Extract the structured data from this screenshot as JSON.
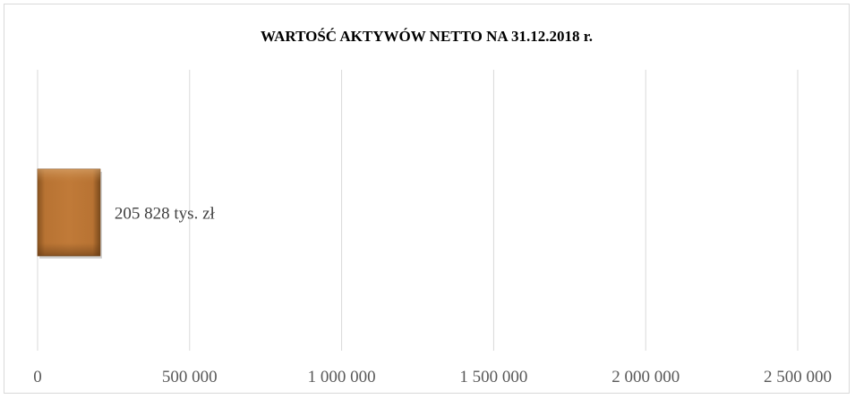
{
  "chart_data": {
    "type": "bar",
    "orientation": "horizontal",
    "title": "WARTOŚĆ AKTYWÓW NETTO NA 31.12.2018 r.",
    "xlabel": "",
    "ylabel": "",
    "categories": [
      ""
    ],
    "values": [
      205828
    ],
    "data_labels": [
      "205 828 tys. zł"
    ],
    "xlim": [
      0,
      2500000
    ],
    "x_ticks": [
      0,
      500000,
      1000000,
      1500000,
      2000000,
      2500000
    ],
    "x_tick_labels": [
      "0",
      "500 000",
      "1 000 000",
      "1 500 000",
      "2 000 000",
      "2 500 000"
    ],
    "grid": true,
    "legend": "none",
    "colors": {
      "bar": "#b87333",
      "bar_light": "#d29a5a",
      "bar_dark": "#7a4a1c",
      "gridline": "#d9d9d9",
      "tick_label": "#595959",
      "data_label": "#404040"
    }
  }
}
